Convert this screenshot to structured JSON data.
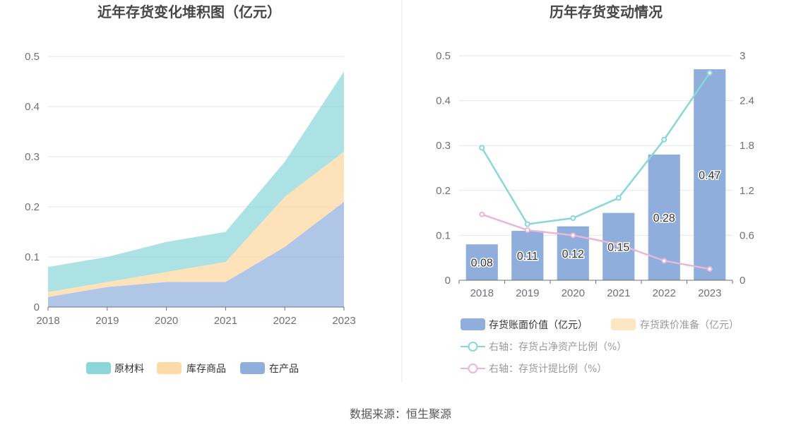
{
  "source_note": "数据来源：恒生聚源",
  "colors": {
    "raw_material": "#8ad6d8",
    "finished_goods": "#fddba9",
    "wip": "#8faedc",
    "bar_book_value": "#8faedc",
    "bar_provision": "#fde6c4",
    "line_net_asset_ratio": "#8ad6d8",
    "line_provision_ratio": "#e8b7d8",
    "grid": "#e0e6f1",
    "axis": "#6e7079"
  },
  "chart_data": [
    {
      "type": "area",
      "title": "近年存货变化堆积图（亿元）",
      "x": [
        "2018",
        "2019",
        "2020",
        "2021",
        "2022",
        "2023"
      ],
      "stacked": true,
      "series": [
        {
          "name": "在产品",
          "color_key": "wip",
          "values": [
            0.02,
            0.04,
            0.05,
            0.05,
            0.12,
            0.21
          ]
        },
        {
          "name": "库存商品",
          "color_key": "finished_goods",
          "values": [
            0.01,
            0.01,
            0.02,
            0.04,
            0.1,
            0.1
          ]
        },
        {
          "name": "原材料",
          "color_key": "raw_material",
          "values": [
            0.05,
            0.05,
            0.06,
            0.06,
            0.07,
            0.16
          ]
        }
      ],
      "legend_order": [
        "原材料",
        "库存商品",
        "在产品"
      ],
      "ylim": [
        0,
        0.5
      ],
      "yticks": [
        "0",
        "0.1",
        "0.2",
        "0.3",
        "0.4",
        "0.5"
      ],
      "grid": true,
      "legend_position": "bottom"
    },
    {
      "type": "bar",
      "title": "历年存货变动情况",
      "categories": [
        "2018",
        "2019",
        "2020",
        "2021",
        "2022",
        "2023"
      ],
      "series": [
        {
          "name": "存货账面价值（亿元）",
          "kind": "bar",
          "axis": "left",
          "color_key": "bar_book_value",
          "values": [
            0.08,
            0.11,
            0.12,
            0.15,
            0.28,
            0.47
          ],
          "labels": [
            "0.08",
            "0.11",
            "0.12",
            "0.15",
            "0.28",
            "0.47"
          ]
        },
        {
          "name": "存货跌价准备（亿元）",
          "kind": "bar",
          "axis": "left",
          "color_key": "bar_provision",
          "values": [
            0,
            0,
            0,
            0,
            0,
            0
          ]
        },
        {
          "name": "右轴：存货占净资产比例（%）",
          "kind": "line",
          "axis": "right",
          "color_key": "line_net_asset_ratio",
          "values": [
            1.77,
            0.75,
            0.83,
            1.1,
            1.88,
            2.77
          ]
        },
        {
          "name": "右轴：存货计提比例（%）",
          "kind": "line",
          "axis": "right",
          "color_key": "line_provision_ratio",
          "values": [
            0.88,
            0.67,
            0.6,
            0.48,
            0.26,
            0.15
          ]
        }
      ],
      "ylim_left": [
        0,
        0.5
      ],
      "yticks_left": [
        "0",
        "0.1",
        "0.2",
        "0.3",
        "0.4",
        "0.5"
      ],
      "ylim_right": [
        0,
        3
      ],
      "yticks_right": [
        "0",
        "0.6",
        "1.2",
        "1.8",
        "2.4",
        "3"
      ],
      "grid": true,
      "legend_position": "bottom"
    }
  ]
}
